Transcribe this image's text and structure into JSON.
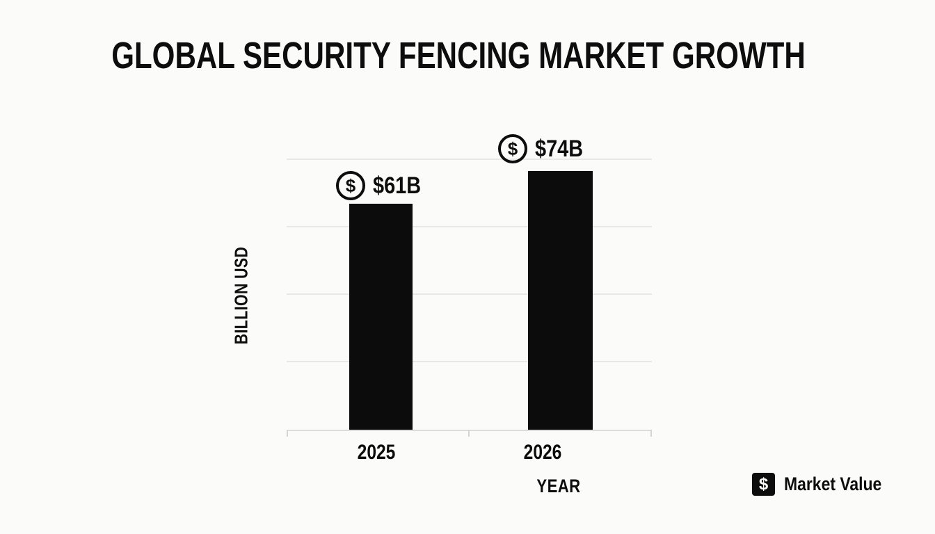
{
  "colors": {
    "background": "#fbfbfa",
    "ink": "#0d0d0d",
    "bar": "#0c0c0c",
    "gridline": "#e8e8e6",
    "axis": "#dcdcda"
  },
  "header": {
    "title": "GLOBAL SECURITY FENCING MARKET GROWTH"
  },
  "axes": {
    "ylabel": "BILLION USD",
    "xlabel": "YEAR"
  },
  "bars": [
    {
      "year": "2025",
      "value_label": "$61B",
      "icon": "dollar-circle-icon",
      "icon_glyph": "$"
    },
    {
      "year": "2026",
      "value_label": "$74B",
      "icon": "dollar-circle-icon",
      "icon_glyph": "$"
    }
  ],
  "legend": {
    "icon_glyph": "$",
    "label": "Market Value"
  },
  "chart_data": {
    "type": "bar",
    "title": "GLOBAL SECURITY FENCING MARKET GROWTH",
    "categories": [
      "2025",
      "2026"
    ],
    "values": [
      61,
      74
    ],
    "value_labels": [
      "$61B",
      "$74B"
    ],
    "xlabel": "YEAR",
    "ylabel": "BILLION USD",
    "series_name": "Market Value",
    "bar_color": "#0c0c0c",
    "grid": true,
    "gridline_count": 4,
    "legend_position": "bottom-right",
    "annotations": "each bar topped by a circled dollar-sign icon with value label"
  }
}
